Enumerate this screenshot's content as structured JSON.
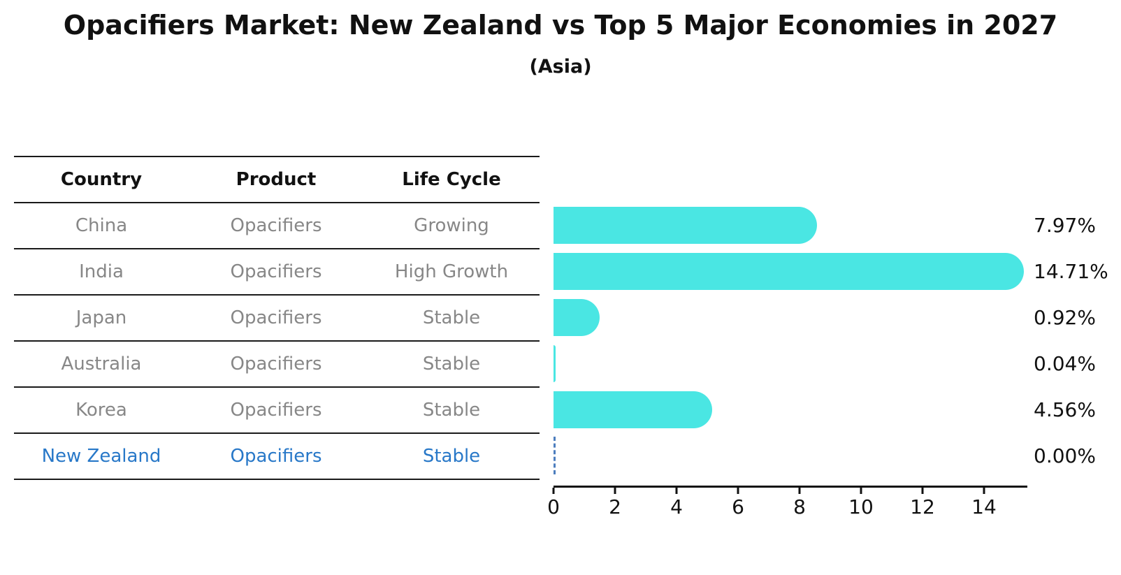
{
  "title": "Opacifiers Market: New Zealand vs Top 5 Major Economies in 2027",
  "subtitle": "(Asia)",
  "colors": {
    "bar": "#4ae6e3",
    "highlight": "#2878c8",
    "row_text": "#878787",
    "zero_dash": "#4d7ebe",
    "text": "#111111"
  },
  "table": {
    "headers": [
      "Country",
      "Product",
      "Life Cycle"
    ],
    "rows": [
      {
        "country": "China",
        "product": "Opacifiers",
        "life_cycle": "Growing",
        "highlight": false
      },
      {
        "country": "India",
        "product": "Opacifiers",
        "life_cycle": "High Growth",
        "highlight": false
      },
      {
        "country": "Japan",
        "product": "Opacifiers",
        "life_cycle": "Stable",
        "highlight": false
      },
      {
        "country": "Australia",
        "product": "Opacifiers",
        "life_cycle": "Stable",
        "highlight": false
      },
      {
        "country": "Korea",
        "product": "Opacifiers",
        "life_cycle": "Stable",
        "highlight": false
      },
      {
        "country": "New Zealand",
        "product": "Opacifiers",
        "life_cycle": "Stable",
        "highlight": true
      }
    ]
  },
  "chart_data": {
    "type": "bar",
    "orientation": "horizontal",
    "title": "Opacifiers Market: New Zealand vs Top 5 Major Economies in 2027",
    "subtitle": "(Asia)",
    "categories": [
      "China",
      "India",
      "Japan",
      "Australia",
      "Korea",
      "New Zealand"
    ],
    "values": [
      7.97,
      14.71,
      0.92,
      0.04,
      4.56,
      0.0
    ],
    "labels": [
      "7.97%",
      "14.71%",
      "0.92%",
      "0.04%",
      "4.56%",
      "0.00%"
    ],
    "xlabel": "",
    "ylabel": "",
    "xlim": [
      0,
      15.4
    ],
    "xticks": [
      0,
      2,
      4,
      6,
      8,
      10,
      12,
      14
    ],
    "grid": false,
    "legend": false,
    "bar_color": "#4ae6e3",
    "zero_value_style": "dashed-outline"
  }
}
